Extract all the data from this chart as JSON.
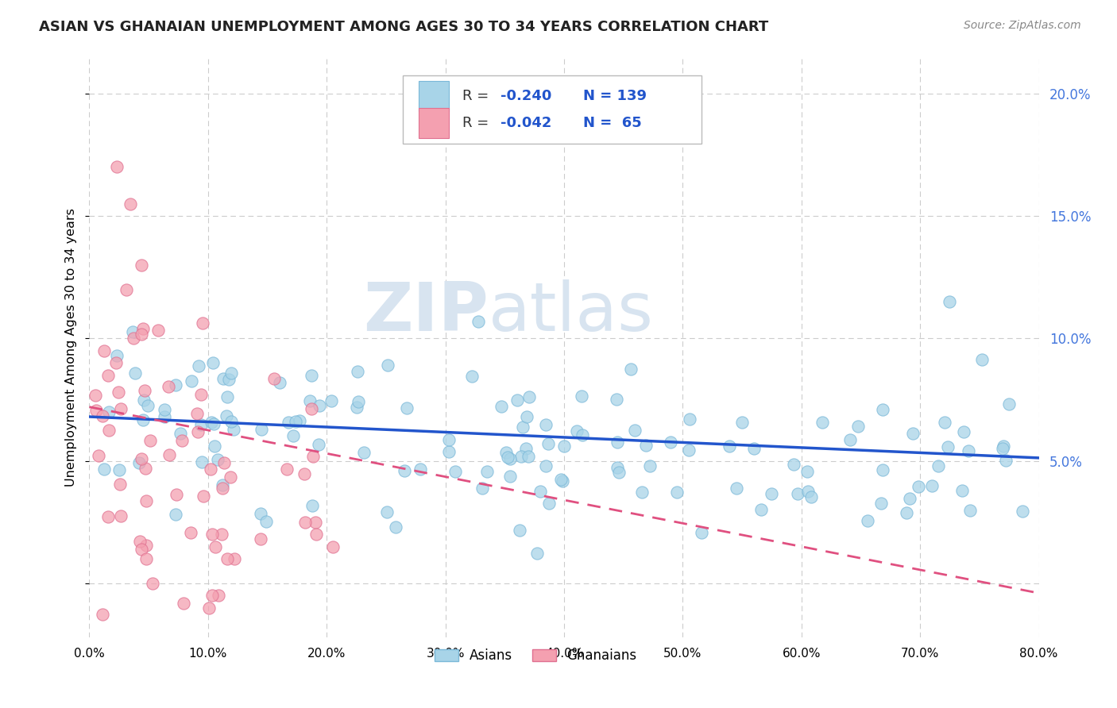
{
  "title": "ASIAN VS GHANAIAN UNEMPLOYMENT AMONG AGES 30 TO 34 YEARS CORRELATION CHART",
  "source": "Source: ZipAtlas.com",
  "ylabel": "Unemployment Among Ages 30 to 34 years",
  "xmin": 0.0,
  "xmax": 0.8,
  "ymin": -0.022,
  "ymax": 0.215,
  "asian_color": "#a8d4e8",
  "asian_edge_color": "#7ab8d8",
  "ghanaian_color": "#f4a0b0",
  "ghanaian_edge_color": "#e07090",
  "asian_line_color": "#2255cc",
  "ghanaian_line_color": "#e05080",
  "legend_r_asian": "-0.240",
  "legend_n_asian": "139",
  "legend_r_ghanaian": "-0.042",
  "legend_n_ghanaian": " 65",
  "watermark_zip": "ZIP",
  "watermark_atlas": "atlas",
  "background_color": "#ffffff",
  "grid_color": "#cccccc",
  "right_tick_color": "#4477dd",
  "title_color": "#222222",
  "source_color": "#888888"
}
